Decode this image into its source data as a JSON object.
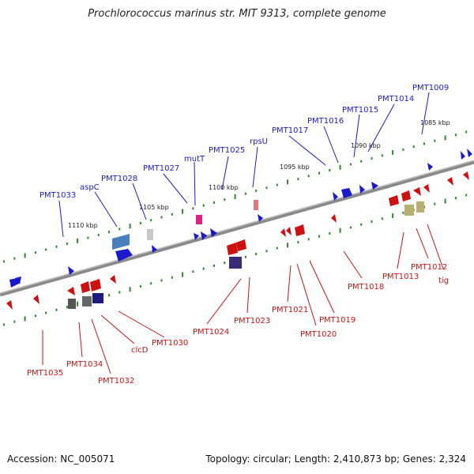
{
  "title": "Prochlorococcus marinus str. MIT 9313, complete genome",
  "accession": "Accession: NC_005071",
  "topology_info": "Topology: circular; Length: 2,410,873 bp; Genes: 2,324",
  "kbp_labels": [
    "1110 kbp",
    "1105 kbp",
    "1100 kbp",
    "1095 kbp",
    "1090 kbp",
    "1085 kbp"
  ],
  "forward_genes": [
    "PMT1033",
    "aspC",
    "PMT1028",
    "PMT1027",
    "mutT",
    "PMT1025",
    "rpsU",
    "PMT1017",
    "PMT1016",
    "PMT1015",
    "PMT1014",
    "PMT1009"
  ],
  "reverse_genes": [
    "PMT1035",
    "PMT1034",
    "PMT1032",
    "clcD",
    "PMT1030",
    "PMT1024",
    "PMT1023",
    "PMT1021",
    "PMT1020",
    "PMT1019",
    "PMT1018",
    "PMT1013",
    "PMT1012",
    "tig"
  ],
  "colors": {
    "forward": "#1a1acc",
    "reverse": "#cc1111",
    "backbone": "#888888",
    "tick": "#2a8a2a"
  }
}
